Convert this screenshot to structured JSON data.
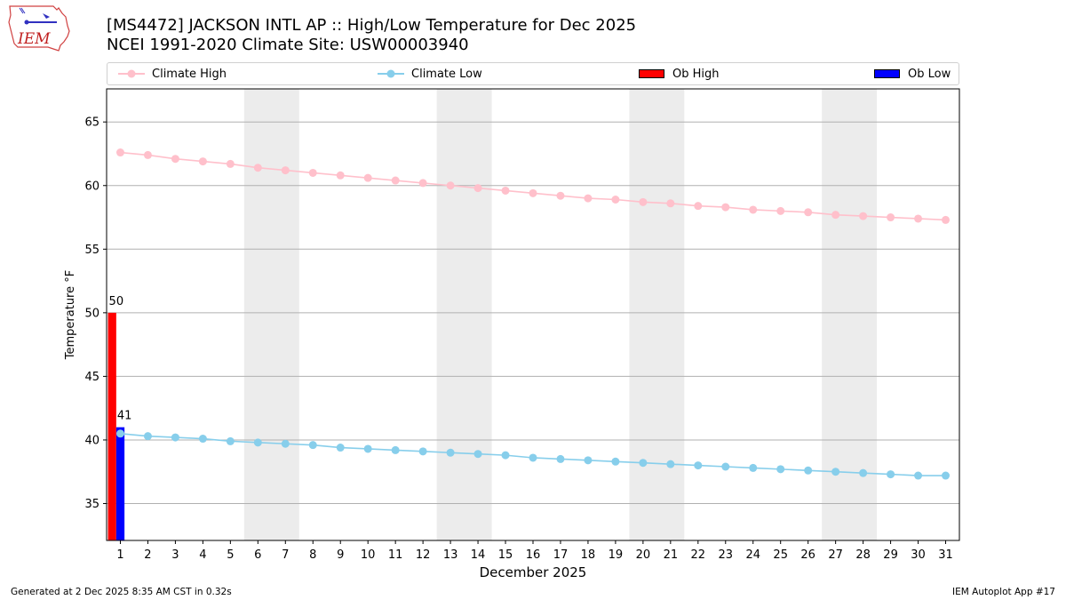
{
  "header": {
    "logo_text": "IEM",
    "title_line1": "[MS4472] JACKSON INTL AP :: High/Low Temperature for Dec 2025",
    "title_line2": "NCEI 1991-2020 Climate Site: USW00003940"
  },
  "legend": [
    {
      "label": "Climate High",
      "kind": "line",
      "color": "#ffc0cb"
    },
    {
      "label": "Climate Low",
      "kind": "line",
      "color": "#87ceeb"
    },
    {
      "label": "Ob High",
      "kind": "bar",
      "color": "#ff0000"
    },
    {
      "label": "Ob Low",
      "kind": "bar",
      "color": "#0000ff"
    }
  ],
  "colors": {
    "climate_high": "#ffc0cb",
    "climate_low": "#87ceeb",
    "ob_high": "#ff0000",
    "ob_low": "#0000ff",
    "weekend_shade": "#ececec",
    "grid": "#b0b0b0"
  },
  "chart_data": {
    "type": "bar",
    "title": "[MS4472] JACKSON INTL AP :: High/Low Temperature for Dec 2025",
    "subtitle": "NCEI 1991-2020 Climate Site: USW00003940",
    "xlabel": "December 2025",
    "ylabel": "Temperature °F",
    "xlim": [
      0.5,
      31.5
    ],
    "ylim": [
      32.1,
      67.6
    ],
    "yticks": [
      35,
      40,
      45,
      50,
      55,
      60,
      65
    ],
    "x": [
      1,
      2,
      3,
      4,
      5,
      6,
      7,
      8,
      9,
      10,
      11,
      12,
      13,
      14,
      15,
      16,
      17,
      18,
      19,
      20,
      21,
      22,
      23,
      24,
      25,
      26,
      27,
      28,
      29,
      30,
      31
    ],
    "grid": "horizontal",
    "weekend_shading": [
      [
        5.5,
        7.5
      ],
      [
        12.5,
        14.5
      ],
      [
        19.5,
        21.5
      ],
      [
        26.5,
        28.5
      ]
    ],
    "series": [
      {
        "name": "Climate High",
        "type": "line",
        "values": [
          62.6,
          62.4,
          62.1,
          61.9,
          61.7,
          61.4,
          61.2,
          61.0,
          60.8,
          60.6,
          60.4,
          60.2,
          60.0,
          59.8,
          59.6,
          59.4,
          59.2,
          59.0,
          58.9,
          58.7,
          58.6,
          58.4,
          58.3,
          58.1,
          58.0,
          57.9,
          57.7,
          57.6,
          57.5,
          57.4,
          57.3
        ]
      },
      {
        "name": "Climate Low",
        "type": "line",
        "values": [
          40.5,
          40.3,
          40.2,
          40.1,
          39.9,
          39.8,
          39.7,
          39.6,
          39.4,
          39.3,
          39.2,
          39.1,
          39.0,
          38.9,
          38.8,
          38.6,
          38.5,
          38.4,
          38.3,
          38.2,
          38.1,
          38.0,
          37.9,
          37.8,
          37.7,
          37.6,
          37.5,
          37.4,
          37.3,
          37.2,
          37.2
        ]
      },
      {
        "name": "Ob High",
        "type": "bar",
        "x": [
          1
        ],
        "values": [
          50
        ]
      },
      {
        "name": "Ob Low",
        "type": "bar",
        "x": [
          1
        ],
        "values": [
          41
        ]
      }
    ],
    "data_labels": [
      {
        "series": "Ob High",
        "x": 1,
        "text": "50"
      },
      {
        "series": "Ob Low",
        "x": 1,
        "text": "41"
      }
    ]
  },
  "footer": {
    "generated": "Generated at 2 Dec 2025 8:35 AM CST in 0.32s",
    "app": "IEM Autoplot App #17"
  }
}
